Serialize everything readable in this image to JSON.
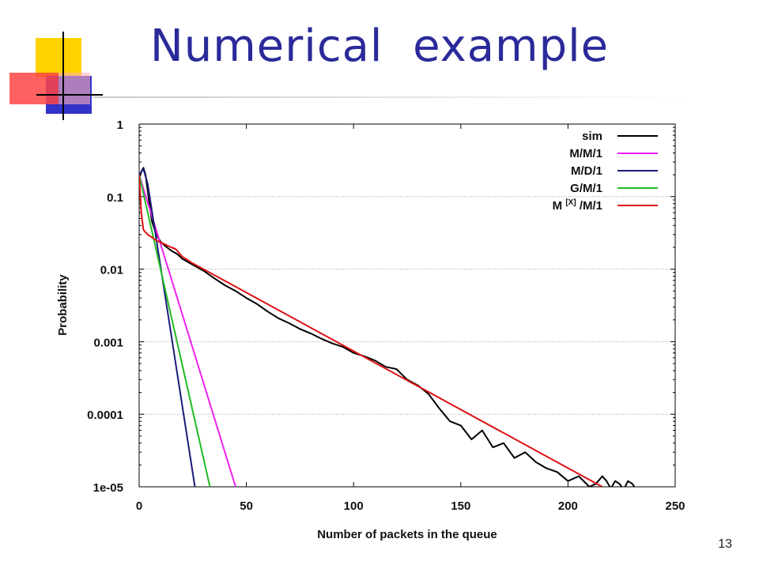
{
  "slide": {
    "title": "Numerical  example",
    "number": "13"
  },
  "colors": {
    "title": "#2a2a9a",
    "deco_yellow": "#ffd200",
    "deco_blue": "#3333cc",
    "deco_red": "#ff3333"
  },
  "chart_data": {
    "type": "line",
    "xlabel": "Number of packets in the queue",
    "ylabel": "Probability",
    "xlim": [
      0,
      250
    ],
    "ylim": [
      1e-05,
      1
    ],
    "yscale": "log",
    "xticks": [
      0,
      50,
      100,
      150,
      200,
      250
    ],
    "yticks": [
      1,
      0.1,
      0.01,
      0.001,
      0.0001,
      1e-05
    ],
    "ytick_labels": [
      "1",
      "0.1",
      "0.01",
      "0.001",
      "0.0001",
      "1e-05"
    ],
    "grid": "dotted horizontal",
    "legend_position": "top-right",
    "series": [
      {
        "name": "sim",
        "color": "#000000",
        "x": [
          0,
          1,
          2,
          3,
          4,
          5,
          6,
          8,
          10,
          12,
          15,
          18,
          20,
          25,
          30,
          35,
          40,
          45,
          50,
          55,
          60,
          65,
          70,
          75,
          80,
          85,
          90,
          95,
          100,
          105,
          110,
          115,
          120,
          125,
          130,
          135,
          140,
          145,
          150,
          155,
          160,
          165,
          170,
          175,
          180,
          185,
          190,
          195,
          200,
          205,
          210,
          213,
          216,
          218,
          220,
          222,
          224,
          226,
          228,
          230,
          232,
          233
        ],
        "y": [
          0.18,
          0.22,
          0.25,
          0.2,
          0.12,
          0.07,
          0.045,
          0.03,
          0.024,
          0.021,
          0.018,
          0.016,
          0.014,
          0.0115,
          0.0095,
          0.0075,
          0.006,
          0.005,
          0.004,
          0.0033,
          0.0026,
          0.0021,
          0.0018,
          0.0015,
          0.0013,
          0.0011,
          0.00095,
          0.00085,
          0.0007,
          0.00063,
          0.00055,
          0.00045,
          0.00042,
          0.0003,
          0.00025,
          0.00019,
          0.00012,
          8e-05,
          7e-05,
          4.5e-05,
          6e-05,
          3.5e-05,
          4e-05,
          2.5e-05,
          3e-05,
          2.2e-05,
          1.8e-05,
          1.6e-05,
          1.2e-05,
          1.4e-05,
          1e-05,
          1.1e-05,
          1.4e-05,
          1.2e-05,
          9.5e-06,
          1.2e-05,
          1.1e-05,
          9.2e-06,
          1.2e-05,
          1.1e-05,
          9e-06,
          9.5e-06
        ]
      },
      {
        "name": "M/M/1",
        "color": "#ee22ee",
        "x": [
          0,
          45
        ],
        "y": [
          0.2,
          1e-05
        ]
      },
      {
        "name": "M/D/1",
        "color": "#1a1a7a",
        "x": [
          0,
          2,
          4,
          26
        ],
        "y": [
          0.2,
          0.24,
          0.15,
          1e-05
        ]
      },
      {
        "name": "G/M/1",
        "color": "#22bb22",
        "x": [
          0,
          33
        ],
        "y": [
          0.2,
          1e-05
        ]
      },
      {
        "name": "M [X] /M/1",
        "color": "#dd1111",
        "x": [
          0,
          1,
          2,
          4,
          8,
          12,
          15,
          17,
          20,
          25,
          30,
          216
        ],
        "y": [
          0.2,
          0.06,
          0.035,
          0.03,
          0.025,
          0.022,
          0.02,
          0.019,
          0.015,
          0.012,
          0.01,
          1e-05
        ]
      }
    ]
  }
}
